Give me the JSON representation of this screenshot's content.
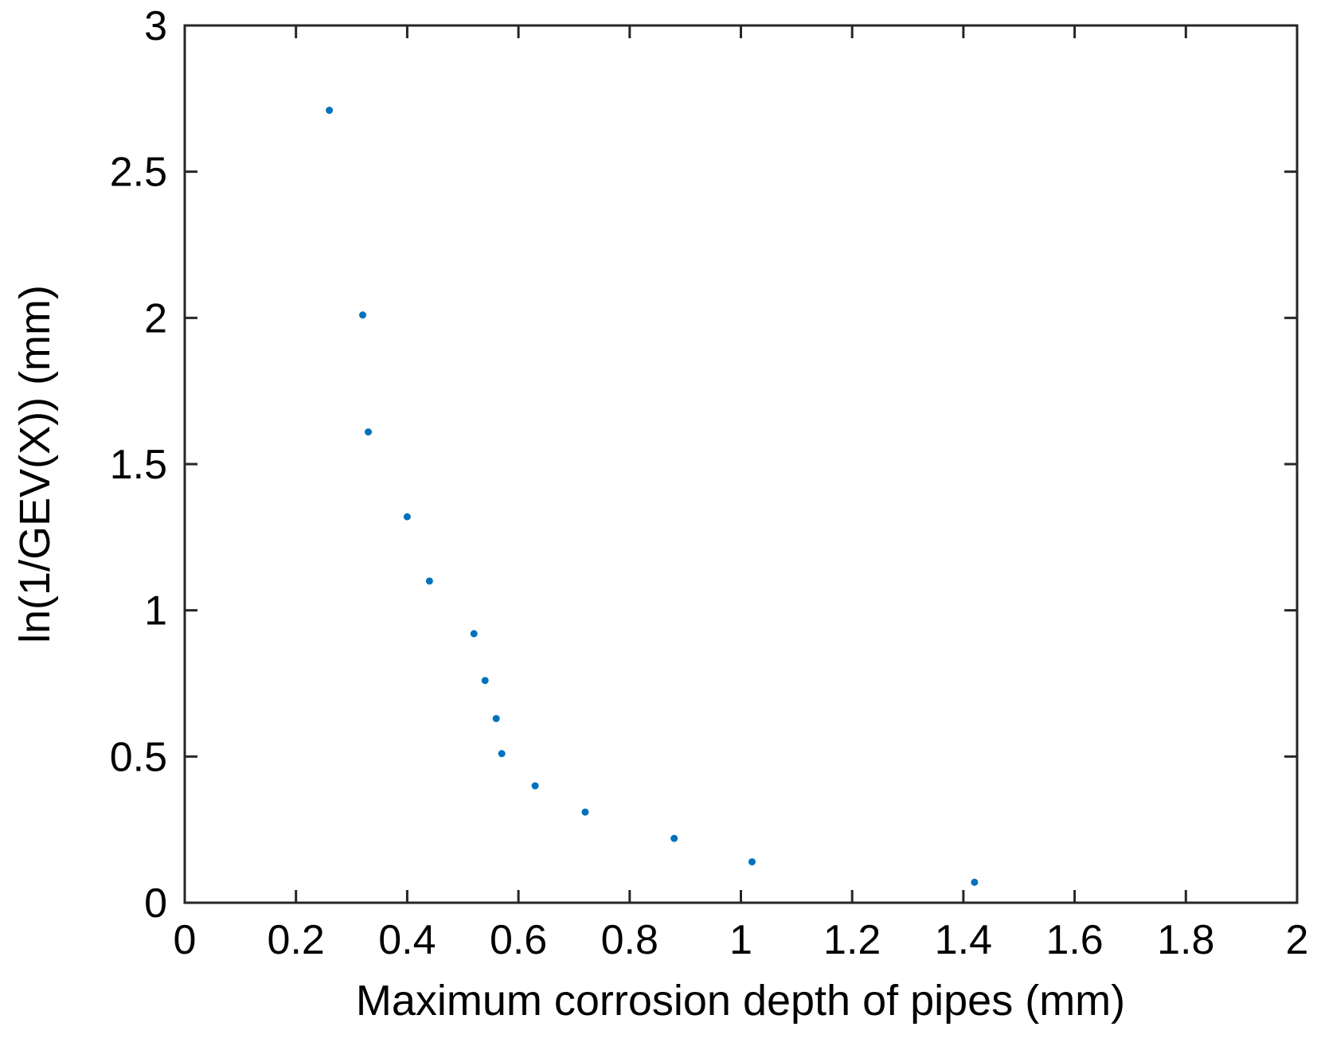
{
  "chart_data": {
    "type": "scatter",
    "title": "",
    "xlabel": "Maximum corrosion depth of pipes (mm)",
    "ylabel": "ln(1/GEV(X)) (mm)",
    "xlim": [
      0,
      2
    ],
    "ylim": [
      0,
      3
    ],
    "xticks": [
      0,
      0.2,
      0.4,
      0.6,
      0.8,
      1,
      1.2,
      1.4,
      1.6,
      1.8,
      2
    ],
    "xtick_labels": [
      "0",
      "0.2",
      "0.4",
      "0.6",
      "0.8",
      "1",
      "1.2",
      "1.4",
      "1.6",
      "1.8",
      "2"
    ],
    "yticks": [
      0,
      0.5,
      1,
      1.5,
      2,
      2.5,
      3
    ],
    "ytick_labels": [
      "0",
      "0.5",
      "1",
      "1.5",
      "2",
      "2.5",
      "3"
    ],
    "grid": false,
    "legend": null,
    "marker_color": "#0072BD",
    "series": [
      {
        "name": "data",
        "x": [
          0.26,
          0.32,
          0.33,
          0.4,
          0.44,
          0.52,
          0.54,
          0.56,
          0.57,
          0.63,
          0.72,
          0.88,
          1.02,
          1.42
        ],
        "y": [
          2.71,
          2.01,
          1.61,
          1.32,
          1.1,
          0.92,
          0.76,
          0.63,
          0.51,
          0.4,
          0.31,
          0.22,
          0.14,
          0.07
        ]
      }
    ]
  }
}
